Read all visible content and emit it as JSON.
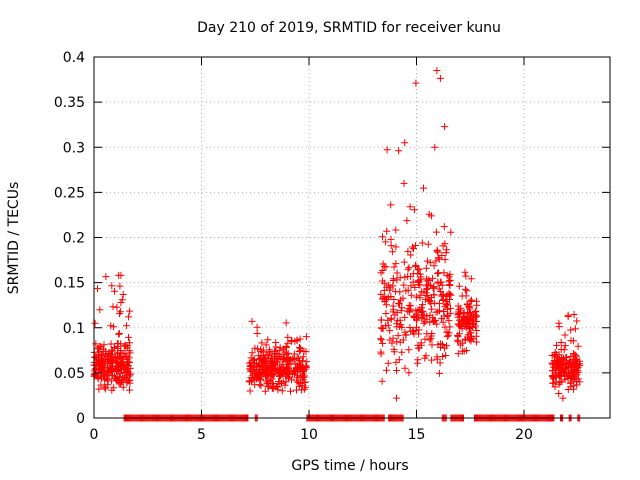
{
  "chart_data": {
    "type": "scatter",
    "title": "Day 210 of 2019, SRMTID for receiver kunu",
    "xlabel": "GPS time / hours",
    "ylabel": "SRMTID / TECUs",
    "xlim": [
      0,
      24
    ],
    "ylim": [
      0,
      0.4
    ],
    "grid": true,
    "marker": "+",
    "series_color": "#ff0000",
    "xticks": [
      0,
      5,
      10,
      15,
      20
    ],
    "xtick_labels": [
      "0",
      "5",
      "10",
      "15",
      "20"
    ],
    "yticks": [
      0,
      0.05,
      0.1,
      0.15,
      0.2,
      0.25,
      0.3,
      0.35,
      0.4
    ],
    "ytick_labels": [
      "0",
      "0.05",
      "0.1",
      "0.15",
      "0.2",
      "0.25",
      "0.3",
      "0.35",
      "0.4"
    ],
    "clusters": [
      {
        "x_range": [
          0.0,
          1.7
        ],
        "y_center": 0.06,
        "y_spread": 0.02,
        "y_max": 0.16,
        "count": 260
      },
      {
        "x_range": [
          7.2,
          9.9
        ],
        "y_center": 0.055,
        "y_spread": 0.02,
        "y_max": 0.107,
        "count": 320
      },
      {
        "x_range": [
          13.3,
          14.6
        ],
        "y_center": 0.12,
        "y_spread": 0.06,
        "y_max": 0.305,
        "count": 110
      },
      {
        "x_range": [
          14.6,
          16.6
        ],
        "y_center": 0.13,
        "y_spread": 0.06,
        "y_max": 0.385,
        "count": 220
      },
      {
        "x_range": [
          16.9,
          17.8
        ],
        "y_center": 0.105,
        "y_spread": 0.025,
        "y_max": 0.165,
        "count": 110
      },
      {
        "x_range": [
          21.3,
          22.6
        ],
        "y_center": 0.055,
        "y_spread": 0.02,
        "y_max": 0.115,
        "count": 180
      }
    ],
    "zero_segments": [
      [
        1.4,
        7.2
      ],
      [
        7.5,
        7.6
      ],
      [
        9.9,
        13.5
      ],
      [
        13.7,
        14.4
      ],
      [
        16.2,
        16.4
      ],
      [
        16.6,
        17.2
      ],
      [
        17.7,
        21.4
      ],
      [
        21.7,
        21.8
      ],
      [
        22.1,
        22.2
      ],
      [
        22.5,
        22.6
      ]
    ],
    "highlight_points": [
      {
        "x": 15.95,
        "y": 0.385
      },
      {
        "x": 14.45,
        "y": 0.305
      },
      {
        "x": 15.85,
        "y": 0.3
      },
      {
        "x": 1.15,
        "y": 0.158
      },
      {
        "x": 1.25,
        "y": 0.158
      },
      {
        "x": 7.35,
        "y": 0.107
      },
      {
        "x": 0.05,
        "y": 0.105
      }
    ]
  }
}
